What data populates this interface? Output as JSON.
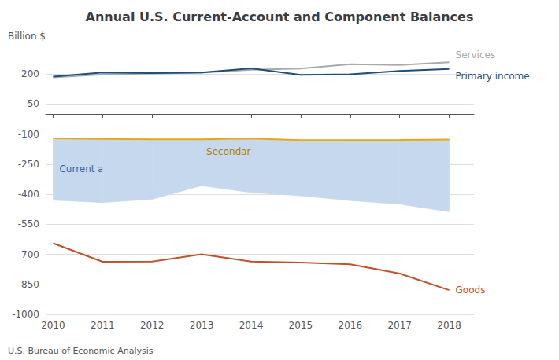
{
  "chart_data": {
    "type": "line",
    "title": "Annual U.S. Current-Account and Component Balances",
    "ylabel": "Billion $",
    "source": "U.S. Bureau of Economic Analysis",
    "x": [
      2010,
      2011,
      2012,
      2013,
      2014,
      2015,
      2016,
      2017,
      2018
    ],
    "series": [
      {
        "name": "Services",
        "color": "#aaaaaa",
        "values": [
          183,
          197,
          202,
          206,
          221,
          227,
          248,
          244,
          258
        ]
      },
      {
        "name": "Primary income",
        "color": "#1f4e79",
        "values": [
          186,
          207,
          204,
          207,
          228,
          195,
          198,
          215,
          225
        ]
      },
      {
        "name": "Secondary income (current transfers)",
        "color": "#e6a817",
        "values": [
          -121,
          -124,
          -126,
          -126,
          -122,
          -130,
          -130,
          -129,
          -127
        ]
      },
      {
        "name": "Current account",
        "type": "area",
        "color": "#c5d8ee",
        "values": [
          -430,
          -442,
          -425,
          -358,
          -392,
          -408,
          -432,
          -450,
          -488
        ]
      },
      {
        "name": "Goods",
        "color": "#c0522a",
        "values": [
          -645,
          -737,
          -736,
          -700,
          -736,
          -741,
          -750,
          -796,
          -879
        ]
      }
    ],
    "xlim": [
      2009.85,
      2018.5
    ],
    "xticks": [
      2010,
      2011,
      2012,
      2013,
      2014,
      2015,
      2016,
      2017,
      2018
    ],
    "ylim": [
      -1000,
      310
    ],
    "yticks": [
      200,
      50,
      -100,
      -250,
      -400,
      -550,
      -700,
      -850,
      -1000
    ],
    "grid": true
  }
}
